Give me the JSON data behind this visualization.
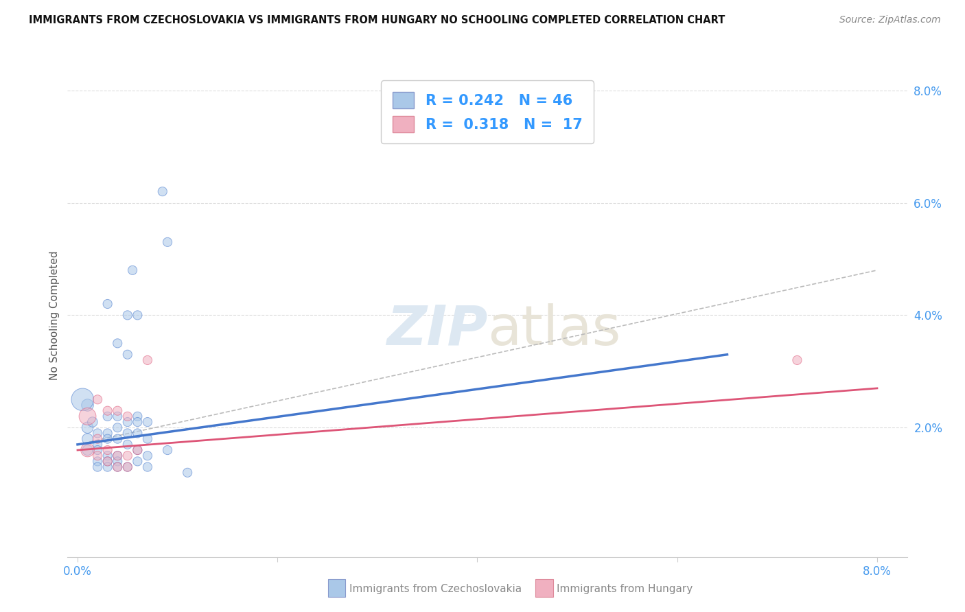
{
  "title": "IMMIGRANTS FROM CZECHOSLOVAKIA VS IMMIGRANTS FROM HUNGARY NO SCHOOLING COMPLETED CORRELATION CHART",
  "source": "Source: ZipAtlas.com",
  "ylabel_label": "No Schooling Completed",
  "legend_label1": "Immigrants from Czechoslovakia",
  "legend_label2": "Immigrants from Hungary",
  "R1": "0.242",
  "N1": "46",
  "R2": "0.318",
  "N2": "17",
  "xlim": [
    -0.001,
    0.083
  ],
  "ylim": [
    -0.003,
    0.083
  ],
  "color_blue": "#aac8e8",
  "color_pink": "#f0b0c0",
  "line_blue": "#4477cc",
  "line_pink": "#dd5577",
  "line_dashed_color": "#bbbbbb",
  "background_color": "#ffffff",
  "grid_color": "#dddddd",
  "blue_scatter_x": [
    0.001,
    0.001,
    0.001,
    0.001,
    0.0015,
    0.002,
    0.002,
    0.002,
    0.002,
    0.002,
    0.003,
    0.003,
    0.003,
    0.003,
    0.003,
    0.003,
    0.004,
    0.004,
    0.004,
    0.004,
    0.004,
    0.004,
    0.004,
    0.005,
    0.005,
    0.005,
    0.005,
    0.005,
    0.005,
    0.0055,
    0.006,
    0.006,
    0.006,
    0.006,
    0.006,
    0.006,
    0.007,
    0.007,
    0.007,
    0.007,
    0.0085,
    0.009,
    0.0005,
    0.003,
    0.009,
    0.011
  ],
  "blue_scatter_y": [
    0.024,
    0.02,
    0.018,
    0.016,
    0.021,
    0.019,
    0.017,
    0.016,
    0.014,
    0.013,
    0.022,
    0.019,
    0.018,
    0.015,
    0.014,
    0.013,
    0.035,
    0.022,
    0.02,
    0.018,
    0.015,
    0.014,
    0.013,
    0.04,
    0.033,
    0.021,
    0.019,
    0.017,
    0.013,
    0.048,
    0.04,
    0.022,
    0.021,
    0.019,
    0.016,
    0.014,
    0.021,
    0.018,
    0.015,
    0.013,
    0.062,
    0.053,
    0.025,
    0.042,
    0.016,
    0.012
  ],
  "pink_scatter_x": [
    0.001,
    0.001,
    0.002,
    0.002,
    0.002,
    0.003,
    0.003,
    0.003,
    0.004,
    0.004,
    0.004,
    0.005,
    0.005,
    0.005,
    0.006,
    0.007,
    0.072
  ],
  "pink_scatter_y": [
    0.022,
    0.016,
    0.025,
    0.018,
    0.015,
    0.023,
    0.016,
    0.014,
    0.023,
    0.015,
    0.013,
    0.022,
    0.015,
    0.013,
    0.016,
    0.032,
    0.032
  ],
  "blue_sizes": [
    160,
    140,
    130,
    120,
    110,
    90,
    90,
    90,
    90,
    90,
    90,
    90,
    90,
    90,
    90,
    90,
    90,
    90,
    90,
    90,
    90,
    90,
    90,
    90,
    90,
    90,
    90,
    90,
    90,
    90,
    90,
    90,
    90,
    90,
    90,
    90,
    90,
    90,
    90,
    90,
    90,
    90,
    550,
    90,
    90,
    90
  ],
  "pink_sizes": [
    320,
    200,
    90,
    90,
    90,
    90,
    90,
    90,
    90,
    90,
    90,
    90,
    90,
    90,
    90,
    90,
    90
  ],
  "blue_line_x0": 0.0,
  "blue_line_x1": 0.065,
  "blue_line_y0": 0.017,
  "blue_line_y1": 0.033,
  "pink_line_x0": 0.0,
  "pink_line_x1": 0.08,
  "pink_line_y0": 0.016,
  "pink_line_y1": 0.027,
  "dash_line_x0": 0.0,
  "dash_line_x1": 0.08,
  "dash_line_y0": 0.017,
  "dash_line_y1": 0.048
}
